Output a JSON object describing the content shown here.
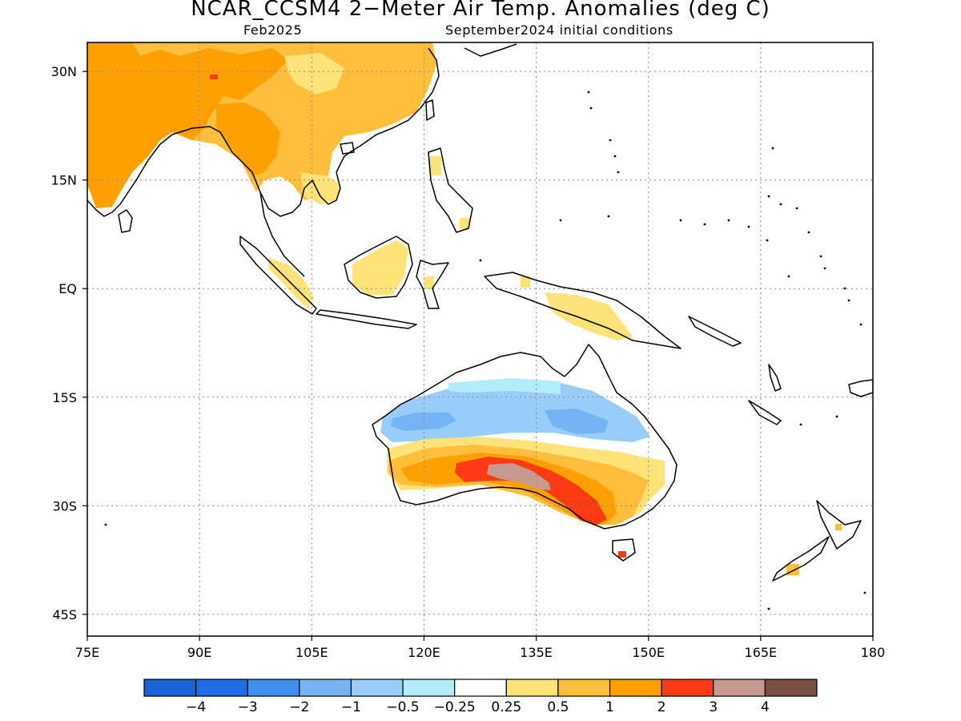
{
  "header": {
    "title": "NCAR_CCSM4 2−Meter Air Temp. Anomalies (deg C)",
    "target_month": "Feb2025",
    "init_conditions": "September2024 initial conditions"
  },
  "map": {
    "type": "geographic anomaly map",
    "lon_range": [
      75,
      180
    ],
    "lat_range": [
      -48,
      34
    ],
    "gridlines": "dotted",
    "x_ticks": [
      {
        "lon": 75,
        "label": "75E"
      },
      {
        "lon": 90,
        "label": "90E"
      },
      {
        "lon": 105,
        "label": "105E"
      },
      {
        "lon": 120,
        "label": "120E"
      },
      {
        "lon": 135,
        "label": "135E"
      },
      {
        "lon": 150,
        "label": "150E"
      },
      {
        "lon": 165,
        "label": "165E"
      },
      {
        "lon": 180,
        "label": "180"
      }
    ],
    "y_ticks": [
      {
        "lat": 30,
        "label": "30N"
      },
      {
        "lat": 15,
        "label": "15N"
      },
      {
        "lat": 0,
        "label": "EQ"
      },
      {
        "lat": -15,
        "label": "15S"
      },
      {
        "lat": -30,
        "label": "30S"
      },
      {
        "lat": -45,
        "label": "45S"
      }
    ]
  },
  "colorbar": {
    "colors": [
      "#1864d0",
      "#1e6ee6",
      "#3d8ff0",
      "#74b4f5",
      "#98ccf9",
      "#b2ecf9",
      "#ffffff",
      "#ffe278",
      "#ffbe3c",
      "#ff9f00",
      "#ff3a14",
      "#c79a90",
      "#7a5044"
    ],
    "labels": [
      "−4",
      "−3",
      "−2",
      "−1",
      "−0.5",
      "−0.25",
      "0.25",
      "0.5",
      "1",
      "2",
      "3",
      "4"
    ]
  }
}
